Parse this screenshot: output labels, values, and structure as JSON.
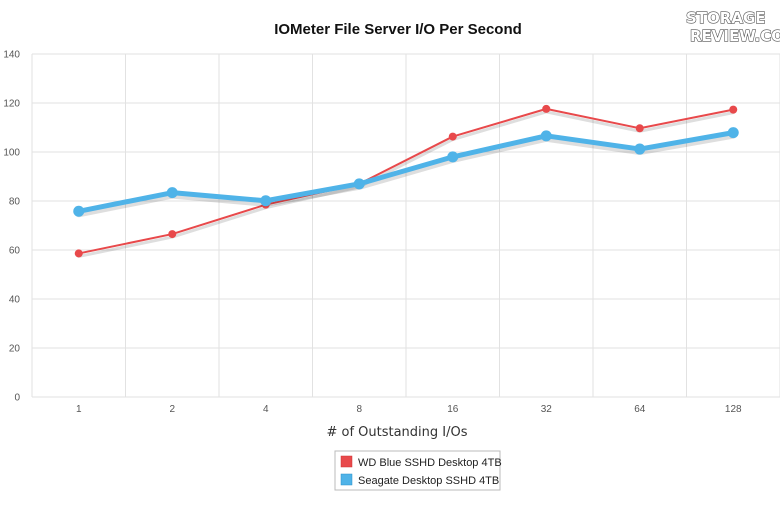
{
  "logo": {
    "line1": "STORAGE",
    "line2": "REVIEW.COM"
  },
  "chart_data": {
    "type": "line",
    "title": "IOMeter File Server I/O Per Second",
    "xlabel": "# of Outstanding I/Os",
    "ylabel": "",
    "categories": [
      "1",
      "2",
      "4",
      "8",
      "16",
      "32",
      "64",
      "128"
    ],
    "ylim": [
      0,
      140
    ],
    "yticks": [
      0,
      20,
      40,
      60,
      80,
      100,
      120,
      140
    ],
    "grid": true,
    "legend_position": "bottom-center",
    "series": [
      {
        "name": "WD Blue SSHD Desktop 4TB",
        "color": "#e8494b",
        "values": [
          58.6,
          66.5,
          78.5,
          87.0,
          106.3,
          117.6,
          109.7,
          117.3
        ]
      },
      {
        "name": "Seagate Desktop SSHD 4TB",
        "color": "#4fb3e8",
        "values": [
          75.8,
          83.4,
          80.1,
          87.0,
          98.0,
          106.6,
          101.2,
          107.9
        ]
      }
    ]
  }
}
